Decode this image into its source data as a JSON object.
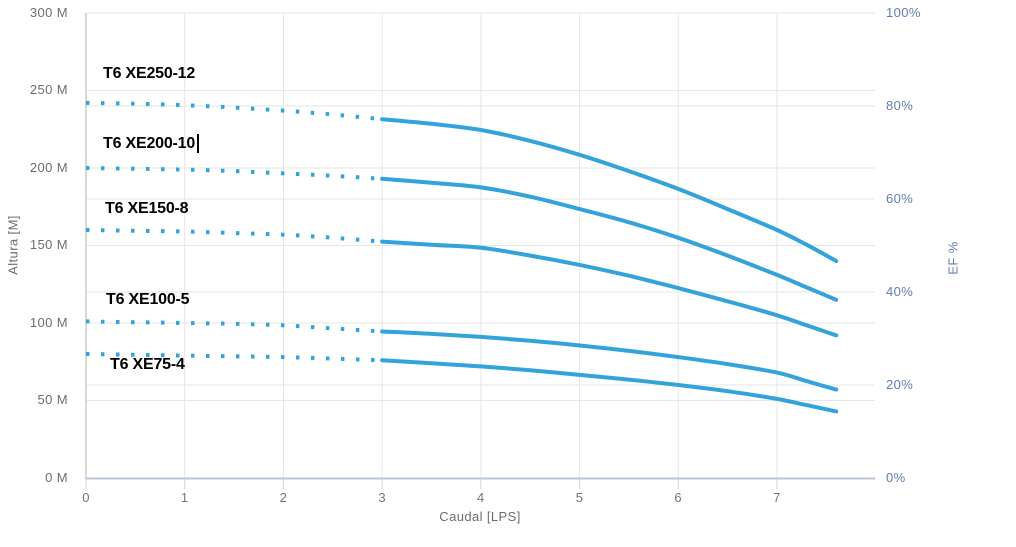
{
  "chart_data": {
    "type": "line",
    "title": "",
    "xlabel": "Caudal [LPS]",
    "ylabel_left": "Altura [M]",
    "ylabel_right": "EF %",
    "x_range": [
      0,
      8
    ],
    "y_left_range": [
      0,
      300
    ],
    "y_right_range": [
      0,
      100
    ],
    "grid": true,
    "legend_position": "none",
    "x_ticks": [
      {
        "label": "0",
        "value": 0
      },
      {
        "label": "1",
        "value": 1
      },
      {
        "label": "2",
        "value": 2
      },
      {
        "label": "3",
        "value": 3
      },
      {
        "label": "4",
        "value": 4
      },
      {
        "label": "5",
        "value": 5
      },
      {
        "label": "6",
        "value": 6
      },
      {
        "label": "7",
        "value": 7
      }
    ],
    "y_left_ticks": [
      {
        "label": "300 M",
        "value": 300
      },
      {
        "label": "250 M",
        "value": 250
      },
      {
        "label": "200 M",
        "value": 200
      },
      {
        "label": "150 M",
        "value": 150
      },
      {
        "label": "100 M",
        "value": 100
      },
      {
        "label": "50 M",
        "value": 50
      },
      {
        "label": "0 M",
        "value": 0
      }
    ],
    "y_right_ticks": [
      {
        "label": "100%",
        "value": 100
      },
      {
        "label": "80%",
        "value": 80
      },
      {
        "label": "60%",
        "value": 60
      },
      {
        "label": "40%",
        "value": 40
      },
      {
        "label": "20%",
        "value": 20
      },
      {
        "label": "0%",
        "value": 0
      }
    ],
    "x_dotted": [
      0,
      0.5,
      1,
      1.5,
      2,
      2.5,
      3
    ],
    "x_solid": [
      3,
      3.5,
      4,
      4.5,
      5,
      5.5,
      6,
      6.5,
      7,
      7.3,
      7.6
    ],
    "series": [
      {
        "name": "T6 XE250-12",
        "head_dotted": [
          242,
          241.5,
          240.5,
          239,
          237,
          234.5,
          231.5
        ],
        "head_solid": [
          231.5,
          228.5,
          224.5,
          217.5,
          208.5,
          198,
          186.5,
          173.5,
          160,
          150.5,
          140
        ]
      },
      {
        "name": "T6 XE200-10",
        "head_dotted": [
          200,
          199.5,
          199,
          198,
          196.5,
          195,
          193
        ],
        "head_solid": [
          193,
          190.5,
          187.5,
          181.5,
          173.5,
          165,
          155,
          143.5,
          131,
          123,
          115
        ]
      },
      {
        "name": "T6 XE150-8",
        "head_dotted": [
          160,
          159.5,
          159,
          158,
          157,
          155,
          152.5
        ],
        "head_solid": [
          152.5,
          150.5,
          148.5,
          143.5,
          137.5,
          130.5,
          122.5,
          114,
          105,
          98.5,
          92
        ]
      },
      {
        "name": "T6 XE100-5",
        "head_dotted": [
          101,
          100.5,
          100,
          99.5,
          98.5,
          96.5,
          94.5
        ],
        "head_solid": [
          94.5,
          93,
          91,
          88.5,
          85.5,
          82,
          78,
          73.5,
          68,
          62.5,
          57
        ]
      },
      {
        "name": "T6 XE75-4",
        "head_dotted": [
          80,
          79.5,
          79,
          78.5,
          78,
          77,
          76
        ],
        "head_solid": [
          76,
          74,
          72,
          69.5,
          66.5,
          63.5,
          60,
          56,
          51,
          47,
          43
        ]
      }
    ],
    "colors": {
      "curve": "#33a3da",
      "grid": "#e6e6e6",
      "plot_border": "#cccccc",
      "axis_line": "#b9c6d4",
      "tick_mark": "#ccd4de",
      "left_label": "#6d6d6d",
      "right_label": "#647bb0",
      "series_label": "#000000"
    },
    "editing": {
      "active_label": "T6 XE200-10",
      "cursor_visible": true
    }
  }
}
